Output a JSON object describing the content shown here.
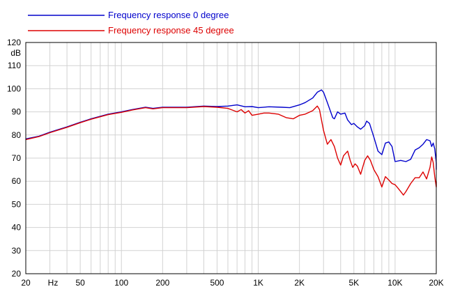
{
  "chart_data": {
    "type": "line",
    "xscale": "log",
    "xlim": [
      20,
      20000
    ],
    "ylim": [
      20,
      120
    ],
    "ylabel": "dB",
    "xlabel": "Hz",
    "grid": true,
    "legend_position": "top-left",
    "y_ticks": [
      "20",
      "30",
      "40",
      "50",
      "60",
      "70",
      "80",
      "90",
      "100",
      "110",
      "120"
    ],
    "x_ticks": [
      {
        "value": 20,
        "label": "20"
      },
      {
        "value": 50,
        "label": "50"
      },
      {
        "value": 100,
        "label": "100"
      },
      {
        "value": 200,
        "label": "200"
      },
      {
        "value": 500,
        "label": "500"
      },
      {
        "value": 1000,
        "label": "1K"
      },
      {
        "value": 2000,
        "label": "2K"
      },
      {
        "value": 5000,
        "label": "5K"
      },
      {
        "value": 10000,
        "label": "10K"
      },
      {
        "value": 20000,
        "label": "20K"
      }
    ],
    "series": [
      {
        "name": "Frequency response 0 degree",
        "color": "#0000cc",
        "points": [
          [
            20,
            78.3
          ],
          [
            25,
            79.5
          ],
          [
            30,
            81.2
          ],
          [
            40,
            83.5
          ],
          [
            50,
            85.5
          ],
          [
            60,
            87
          ],
          [
            80,
            89
          ],
          [
            100,
            90
          ],
          [
            120,
            91
          ],
          [
            150,
            92
          ],
          [
            170,
            91.5
          ],
          [
            200,
            92
          ],
          [
            300,
            92
          ],
          [
            400,
            92.5
          ],
          [
            500,
            92.3
          ],
          [
            600,
            92.5
          ],
          [
            700,
            93
          ],
          [
            800,
            92.2
          ],
          [
            900,
            92.3
          ],
          [
            1000,
            91.8
          ],
          [
            1200,
            92.2
          ],
          [
            1500,
            92
          ],
          [
            1700,
            91.8
          ],
          [
            2000,
            93
          ],
          [
            2200,
            94
          ],
          [
            2500,
            96
          ],
          [
            2700,
            98.5
          ],
          [
            2900,
            99.5
          ],
          [
            3000,
            98.5
          ],
          [
            3200,
            94
          ],
          [
            3500,
            87.5
          ],
          [
            3600,
            87
          ],
          [
            3800,
            90
          ],
          [
            4000,
            89
          ],
          [
            4300,
            89.5
          ],
          [
            4500,
            86.5
          ],
          [
            4800,
            84.5
          ],
          [
            5000,
            85
          ],
          [
            5300,
            83.5
          ],
          [
            5600,
            82.5
          ],
          [
            6000,
            84
          ],
          [
            6200,
            86
          ],
          [
            6500,
            85
          ],
          [
            7000,
            79
          ],
          [
            7500,
            73
          ],
          [
            8000,
            71.5
          ],
          [
            8500,
            76.5
          ],
          [
            9000,
            77
          ],
          [
            9500,
            75
          ],
          [
            10000,
            68.5
          ],
          [
            11000,
            69
          ],
          [
            12000,
            68.5
          ],
          [
            13000,
            69.5
          ],
          [
            14000,
            73.5
          ],
          [
            15000,
            74.5
          ],
          [
            16000,
            76
          ],
          [
            17000,
            78
          ],
          [
            18000,
            77.5
          ],
          [
            18500,
            75
          ],
          [
            19000,
            76.5
          ],
          [
            19500,
            74
          ],
          [
            20000,
            68
          ],
          [
            20000,
            65
          ]
        ]
      },
      {
        "name": "Frequency response 45 degree",
        "color": "#dd0000",
        "points": [
          [
            20,
            78
          ],
          [
            25,
            79.3
          ],
          [
            30,
            81
          ],
          [
            40,
            83.3
          ],
          [
            50,
            85.3
          ],
          [
            60,
            86.8
          ],
          [
            80,
            88.8
          ],
          [
            100,
            89.8
          ],
          [
            120,
            90.8
          ],
          [
            150,
            91.8
          ],
          [
            170,
            91.3
          ],
          [
            200,
            91.8
          ],
          [
            300,
            91.8
          ],
          [
            400,
            92.3
          ],
          [
            500,
            92
          ],
          [
            600,
            91.5
          ],
          [
            700,
            90
          ],
          [
            750,
            91
          ],
          [
            800,
            89.5
          ],
          [
            850,
            90.5
          ],
          [
            900,
            88.5
          ],
          [
            1000,
            89
          ],
          [
            1100,
            89.5
          ],
          [
            1200,
            89.5
          ],
          [
            1400,
            89
          ],
          [
            1600,
            87.5
          ],
          [
            1800,
            87
          ],
          [
            2000,
            88.5
          ],
          [
            2200,
            89
          ],
          [
            2500,
            90.5
          ],
          [
            2700,
            92.5
          ],
          [
            2800,
            91
          ],
          [
            3000,
            82
          ],
          [
            3200,
            76
          ],
          [
            3400,
            78
          ],
          [
            3600,
            75
          ],
          [
            3800,
            70
          ],
          [
            4000,
            67
          ],
          [
            4200,
            71
          ],
          [
            4500,
            73
          ],
          [
            4700,
            69
          ],
          [
            4900,
            66
          ],
          [
            5100,
            67.5
          ],
          [
            5300,
            66.5
          ],
          [
            5600,
            63
          ],
          [
            6000,
            69
          ],
          [
            6300,
            71
          ],
          [
            6600,
            69
          ],
          [
            7000,
            65
          ],
          [
            7500,
            62
          ],
          [
            8000,
            57.5
          ],
          [
            8500,
            62
          ],
          [
            9000,
            60.5
          ],
          [
            9500,
            59
          ],
          [
            10000,
            58.5
          ],
          [
            10500,
            57
          ],
          [
            11000,
            55.5
          ],
          [
            11500,
            54
          ],
          [
            12000,
            55.5
          ],
          [
            13000,
            59
          ],
          [
            14000,
            61.5
          ],
          [
            15000,
            61.5
          ],
          [
            16000,
            64
          ],
          [
            17000,
            61
          ],
          [
            18000,
            66
          ],
          [
            18500,
            70.5
          ],
          [
            19000,
            68
          ],
          [
            19500,
            62
          ],
          [
            20000,
            57.5
          ],
          [
            20000,
            60
          ]
        ]
      }
    ]
  }
}
